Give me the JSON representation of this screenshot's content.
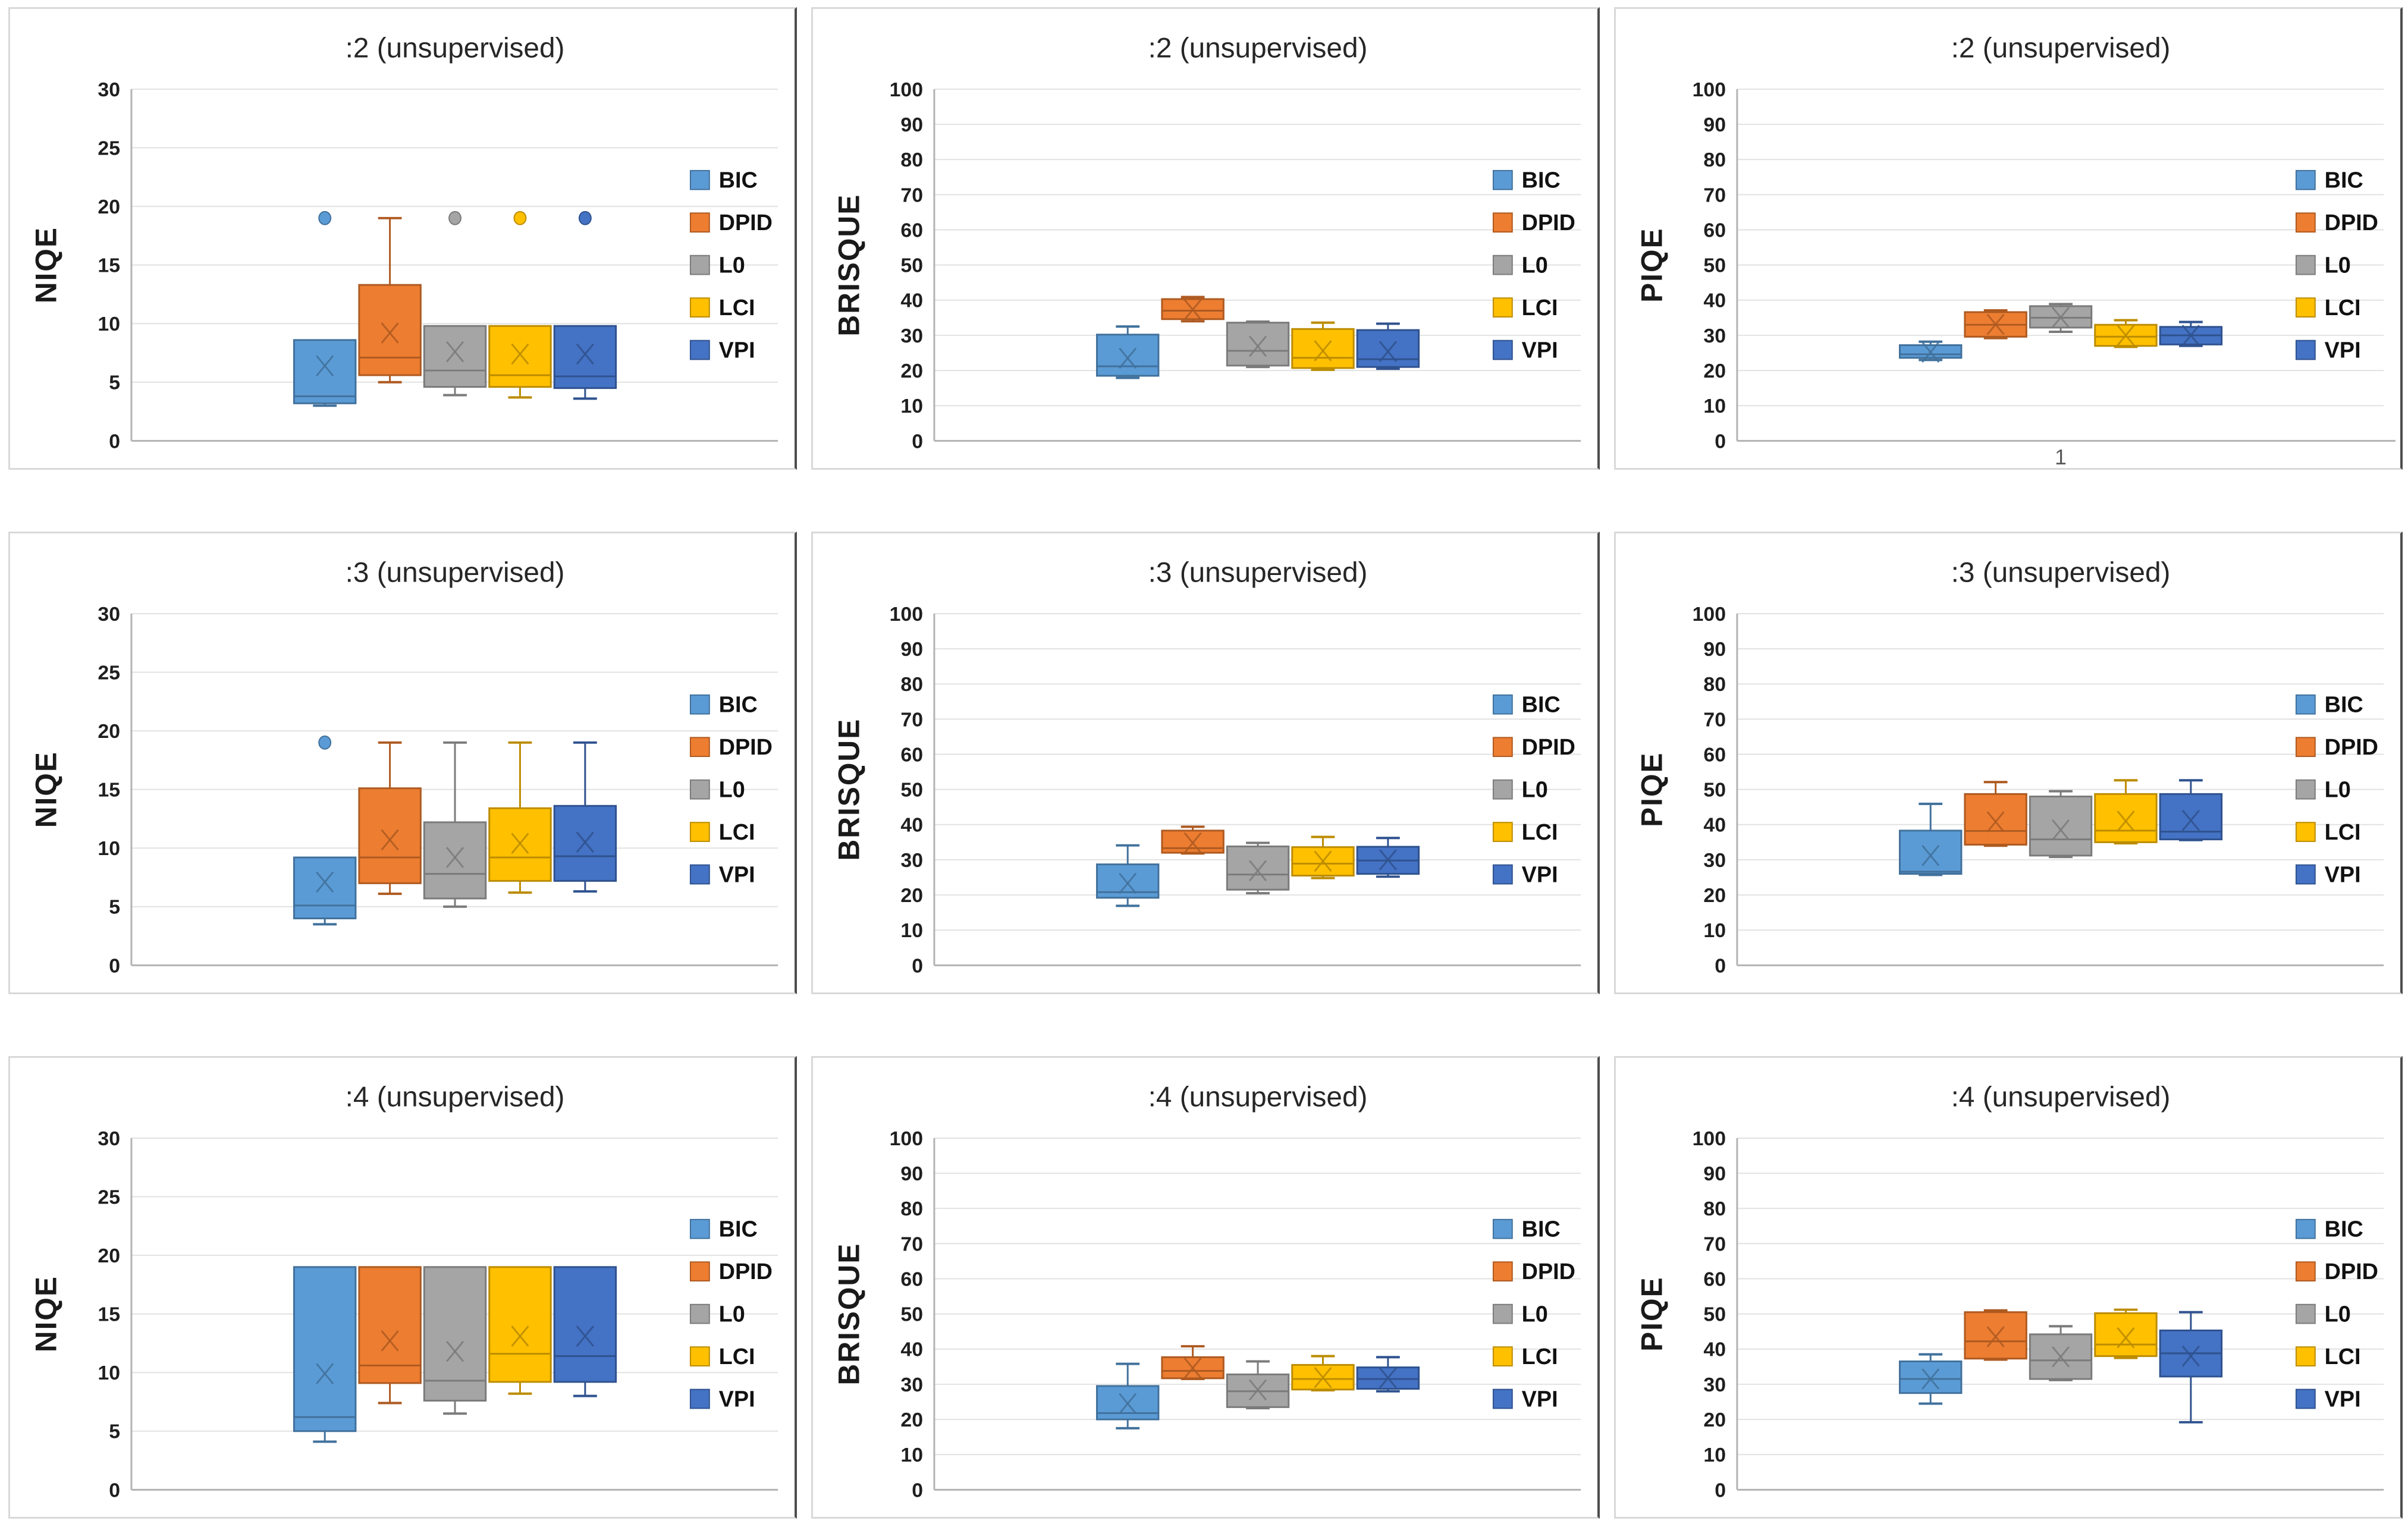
{
  "page": {
    "background": "#ffffff",
    "panel_border": "#d9d9d9",
    "panel_border_right": "#4d4d4d"
  },
  "series": [
    {
      "label": "BIC",
      "fill": "#5B9BD5",
      "stroke": "#41719C"
    },
    {
      "label": "DPID",
      "fill": "#ED7D31",
      "stroke": "#AE5A21"
    },
    {
      "label": "L0",
      "fill": "#A5A5A5",
      "stroke": "#7B7B7B"
    },
    {
      "label": "LCI",
      "fill": "#FFC000",
      "stroke": "#BC8C00"
    },
    {
      "label": "VPI",
      "fill": "#4472C4",
      "stroke": "#2F528F"
    }
  ],
  "style": {
    "gridline_color": "#e2e2e2",
    "axis_color": "#b3b3b3",
    "title_color": "#262626",
    "tick_color": "#1f1f1f",
    "ylabel_color": "#1a1a1a",
    "legend_text_color": "#111111",
    "xlabel_color": "#595959"
  },
  "chart_data": [
    {
      "type": "boxplot",
      "title": ":2 (unsupervised)",
      "ylabel": "NIQE",
      "xlabel": null,
      "ylim": [
        0,
        30
      ],
      "ytick_step": 5,
      "grid": true,
      "legend_position": "right",
      "boxes": [
        {
          "series": "BIC",
          "whisker_low": 3.0,
          "q1": 3.2,
          "median": 3.8,
          "q3": 8.6,
          "whisker_high": 8.6,
          "mean": 6.4,
          "outliers": [
            19.0
          ]
        },
        {
          "series": "DPID",
          "whisker_low": 5.0,
          "q1": 5.6,
          "median": 7.1,
          "q3": 13.3,
          "whisker_high": 19.0,
          "mean": 9.2,
          "outliers": []
        },
        {
          "series": "L0",
          "whisker_low": 3.9,
          "q1": 4.6,
          "median": 6.0,
          "q3": 9.8,
          "whisker_high": 9.8,
          "mean": 7.6,
          "outliers": [
            19.0
          ]
        },
        {
          "series": "LCI",
          "whisker_low": 3.7,
          "q1": 4.6,
          "median": 5.6,
          "q3": 9.8,
          "whisker_high": 9.8,
          "mean": 7.4,
          "outliers": [
            19.0
          ]
        },
        {
          "series": "VPI",
          "whisker_low": 3.6,
          "q1": 4.5,
          "median": 5.5,
          "q3": 9.8,
          "whisker_high": 9.8,
          "mean": 7.4,
          "outliers": [
            19.0
          ]
        }
      ]
    },
    {
      "type": "boxplot",
      "title": ":2 (unsupervised)",
      "ylabel": "BRISQUE",
      "xlabel": null,
      "ylim": [
        0,
        100
      ],
      "ytick_step": 10,
      "grid": true,
      "legend_position": "right",
      "boxes": [
        {
          "series": "BIC",
          "whisker_low": 17.9,
          "q1": 18.5,
          "median": 21.2,
          "q3": 30.2,
          "whisker_high": 32.5,
          "mean": 23.5,
          "outliers": []
        },
        {
          "series": "DPID",
          "whisker_low": 34.0,
          "q1": 34.6,
          "median": 37.0,
          "q3": 40.3,
          "whisker_high": 40.9,
          "mean": 37.3,
          "outliers": []
        },
        {
          "series": "L0",
          "whisker_low": 21.0,
          "q1": 21.4,
          "median": 25.6,
          "q3": 33.6,
          "whisker_high": 33.9,
          "mean": 26.9,
          "outliers": []
        },
        {
          "series": "LCI",
          "whisker_low": 20.2,
          "q1": 20.7,
          "median": 23.6,
          "q3": 31.8,
          "whisker_high": 33.6,
          "mean": 25.6,
          "outliers": []
        },
        {
          "series": "VPI",
          "whisker_low": 20.5,
          "q1": 21.0,
          "median": 23.2,
          "q3": 31.5,
          "whisker_high": 33.3,
          "mean": 25.4,
          "outliers": []
        }
      ]
    },
    {
      "type": "boxplot",
      "title": ":2 (unsupervised)",
      "ylabel": "PIQE",
      "xlabel": "1",
      "ylim": [
        0,
        100
      ],
      "ytick_step": 10,
      "grid": true,
      "legend_position": "right",
      "boxes": [
        {
          "series": "BIC",
          "whisker_low": 23.0,
          "q1": 23.6,
          "median": 24.6,
          "q3": 27.2,
          "whisker_high": 28.2,
          "mean": 25.2,
          "outliers": []
        },
        {
          "series": "DPID",
          "whisker_low": 29.2,
          "q1": 29.6,
          "median": 33.0,
          "q3": 36.6,
          "whisker_high": 37.1,
          "mean": 33.1,
          "outliers": []
        },
        {
          "series": "L0",
          "whisker_low": 31.0,
          "q1": 32.2,
          "median": 35.0,
          "q3": 38.3,
          "whisker_high": 38.9,
          "mean": 35.1,
          "outliers": []
        },
        {
          "series": "LCI",
          "whisker_low": 26.7,
          "q1": 27.0,
          "median": 29.6,
          "q3": 33.0,
          "whisker_high": 34.3,
          "mean": 30.0,
          "outliers": []
        },
        {
          "series": "VPI",
          "whisker_low": 27.0,
          "q1": 27.4,
          "median": 30.0,
          "q3": 32.4,
          "whisker_high": 33.8,
          "mean": 30.0,
          "outliers": []
        }
      ]
    },
    {
      "type": "boxplot",
      "title": ":3 (unsupervised)",
      "ylabel": "NIQE",
      "xlabel": null,
      "ylim": [
        0,
        30
      ],
      "ytick_step": 5,
      "grid": true,
      "legend_position": "right",
      "boxes": [
        {
          "series": "BIC",
          "whisker_low": 3.5,
          "q1": 4.0,
          "median": 5.1,
          "q3": 9.2,
          "whisker_high": 9.2,
          "mean": 7.1,
          "outliers": [
            19.0
          ]
        },
        {
          "series": "DPID",
          "whisker_low": 6.1,
          "q1": 7.0,
          "median": 9.2,
          "q3": 15.1,
          "whisker_high": 19.0,
          "mean": 10.7,
          "outliers": []
        },
        {
          "series": "L0",
          "whisker_low": 5.0,
          "q1": 5.7,
          "median": 7.8,
          "q3": 12.2,
          "whisker_high": 19.0,
          "mean": 9.2,
          "outliers": []
        },
        {
          "series": "LCI",
          "whisker_low": 6.2,
          "q1": 7.2,
          "median": 9.2,
          "q3": 13.4,
          "whisker_high": 19.0,
          "mean": 10.4,
          "outliers": []
        },
        {
          "series": "VPI",
          "whisker_low": 6.3,
          "q1": 7.2,
          "median": 9.3,
          "q3": 13.6,
          "whisker_high": 19.0,
          "mean": 10.5,
          "outliers": []
        }
      ]
    },
    {
      "type": "boxplot",
      "title": ":3 (unsupervised)",
      "ylabel": "BRISQUE",
      "xlabel": null,
      "ylim": [
        0,
        100
      ],
      "ytick_step": 10,
      "grid": true,
      "legend_position": "right",
      "boxes": [
        {
          "series": "BIC",
          "whisker_low": 16.9,
          "q1": 19.2,
          "median": 20.8,
          "q3": 28.7,
          "whisker_high": 34.1,
          "mean": 23.3,
          "outliers": []
        },
        {
          "series": "DPID",
          "whisker_low": 31.8,
          "q1": 32.0,
          "median": 33.3,
          "q3": 38.3,
          "whisker_high": 39.4,
          "mean": 34.8,
          "outliers": []
        },
        {
          "series": "L0",
          "whisker_low": 20.5,
          "q1": 21.5,
          "median": 25.8,
          "q3": 33.8,
          "whisker_high": 34.8,
          "mean": 26.9,
          "outliers": []
        },
        {
          "series": "LCI",
          "whisker_low": 24.8,
          "q1": 25.5,
          "median": 28.9,
          "q3": 33.6,
          "whisker_high": 36.5,
          "mean": 29.6,
          "outliers": []
        },
        {
          "series": "VPI",
          "whisker_low": 25.2,
          "q1": 26.0,
          "median": 29.8,
          "q3": 33.7,
          "whisker_high": 36.2,
          "mean": 30.0,
          "outliers": []
        }
      ]
    },
    {
      "type": "boxplot",
      "title": ":3 (unsupervised)",
      "ylabel": "PIQE",
      "xlabel": null,
      "ylim": [
        0,
        100
      ],
      "ytick_step": 10,
      "grid": true,
      "legend_position": "right",
      "boxes": [
        {
          "series": "BIC",
          "whisker_low": 25.7,
          "q1": 26.0,
          "median": 26.6,
          "q3": 38.3,
          "whisker_high": 45.9,
          "mean": 31.2,
          "outliers": []
        },
        {
          "series": "DPID",
          "whisker_low": 34.0,
          "q1": 34.3,
          "median": 38.2,
          "q3": 48.7,
          "whisker_high": 52.1,
          "mean": 40.8,
          "outliers": []
        },
        {
          "series": "L0",
          "whisker_low": 30.8,
          "q1": 31.2,
          "median": 35.8,
          "q3": 48.0,
          "whisker_high": 49.5,
          "mean": 38.5,
          "outliers": []
        },
        {
          "series": "LCI",
          "whisker_low": 34.7,
          "q1": 35.0,
          "median": 38.3,
          "q3": 48.7,
          "whisker_high": 52.6,
          "mean": 41.0,
          "outliers": []
        },
        {
          "series": "VPI",
          "whisker_low": 35.6,
          "q1": 35.8,
          "median": 38.0,
          "q3": 48.7,
          "whisker_high": 52.6,
          "mean": 41.2,
          "outliers": []
        }
      ]
    },
    {
      "type": "boxplot",
      "title": ":4 (unsupervised)",
      "ylabel": "NIQE",
      "xlabel": null,
      "ylim": [
        0,
        30
      ],
      "ytick_step": 5,
      "grid": true,
      "legend_position": "right",
      "boxes": [
        {
          "series": "BIC",
          "whisker_low": 4.1,
          "q1": 5.0,
          "median": 6.2,
          "q3": 19.0,
          "whisker_high": 19.0,
          "mean": 9.9,
          "outliers": []
        },
        {
          "series": "DPID",
          "whisker_low": 7.4,
          "q1": 9.1,
          "median": 10.6,
          "q3": 19.0,
          "whisker_high": 19.0,
          "mean": 12.7,
          "outliers": []
        },
        {
          "series": "L0",
          "whisker_low": 6.5,
          "q1": 7.6,
          "median": 9.3,
          "q3": 19.0,
          "whisker_high": 19.0,
          "mean": 11.8,
          "outliers": []
        },
        {
          "series": "LCI",
          "whisker_low": 8.2,
          "q1": 9.2,
          "median": 11.6,
          "q3": 19.0,
          "whisker_high": 19.0,
          "mean": 13.1,
          "outliers": []
        },
        {
          "series": "VPI",
          "whisker_low": 8.0,
          "q1": 9.2,
          "median": 11.4,
          "q3": 19.0,
          "whisker_high": 19.0,
          "mean": 13.1,
          "outliers": []
        }
      ]
    },
    {
      "type": "boxplot",
      "title": ":4 (unsupervised)",
      "ylabel": "BRISQUE",
      "xlabel": null,
      "ylim": [
        0,
        100
      ],
      "ytick_step": 10,
      "grid": true,
      "legend_position": "right",
      "boxes": [
        {
          "series": "BIC",
          "whisker_low": 17.5,
          "q1": 20.0,
          "median": 21.8,
          "q3": 29.5,
          "whisker_high": 35.8,
          "mean": 24.5,
          "outliers": []
        },
        {
          "series": "DPID",
          "whisker_low": 31.5,
          "q1": 31.7,
          "median": 33.8,
          "q3": 37.7,
          "whisker_high": 40.8,
          "mean": 34.6,
          "outliers": []
        },
        {
          "series": "L0",
          "whisker_low": 23.2,
          "q1": 23.5,
          "median": 28.0,
          "q3": 32.8,
          "whisker_high": 36.5,
          "mean": 28.4,
          "outliers": []
        },
        {
          "series": "LCI",
          "whisker_low": 28.3,
          "q1": 28.5,
          "median": 31.5,
          "q3": 35.5,
          "whisker_high": 38.0,
          "mean": 31.9,
          "outliers": []
        },
        {
          "series": "VPI",
          "whisker_low": 28.0,
          "q1": 28.7,
          "median": 31.5,
          "q3": 34.8,
          "whisker_high": 37.7,
          "mean": 31.8,
          "outliers": []
        }
      ]
    },
    {
      "type": "boxplot",
      "title": ":4 (unsupervised)",
      "ylabel": "PIQE",
      "xlabel": null,
      "ylim": [
        0,
        100
      ],
      "ytick_step": 10,
      "grid": true,
      "legend_position": "right",
      "boxes": [
        {
          "series": "BIC",
          "whisker_low": 24.5,
          "q1": 27.5,
          "median": 31.5,
          "q3": 36.5,
          "whisker_high": 38.5,
          "mean": 31.5,
          "outliers": []
        },
        {
          "series": "DPID",
          "whisker_low": 37.0,
          "q1": 37.3,
          "median": 42.2,
          "q3": 50.5,
          "whisker_high": 51.0,
          "mean": 43.5,
          "outliers": []
        },
        {
          "series": "L0",
          "whisker_low": 31.2,
          "q1": 31.5,
          "median": 36.8,
          "q3": 44.2,
          "whisker_high": 46.5,
          "mean": 37.8,
          "outliers": []
        },
        {
          "series": "LCI",
          "whisker_low": 37.5,
          "q1": 38.0,
          "median": 41.3,
          "q3": 50.2,
          "whisker_high": 51.2,
          "mean": 43.2,
          "outliers": []
        },
        {
          "series": "VPI",
          "whisker_low": 19.2,
          "q1": 32.2,
          "median": 38.8,
          "q3": 45.3,
          "whisker_high": 50.5,
          "mean": 38.0,
          "outliers": []
        }
      ]
    }
  ]
}
